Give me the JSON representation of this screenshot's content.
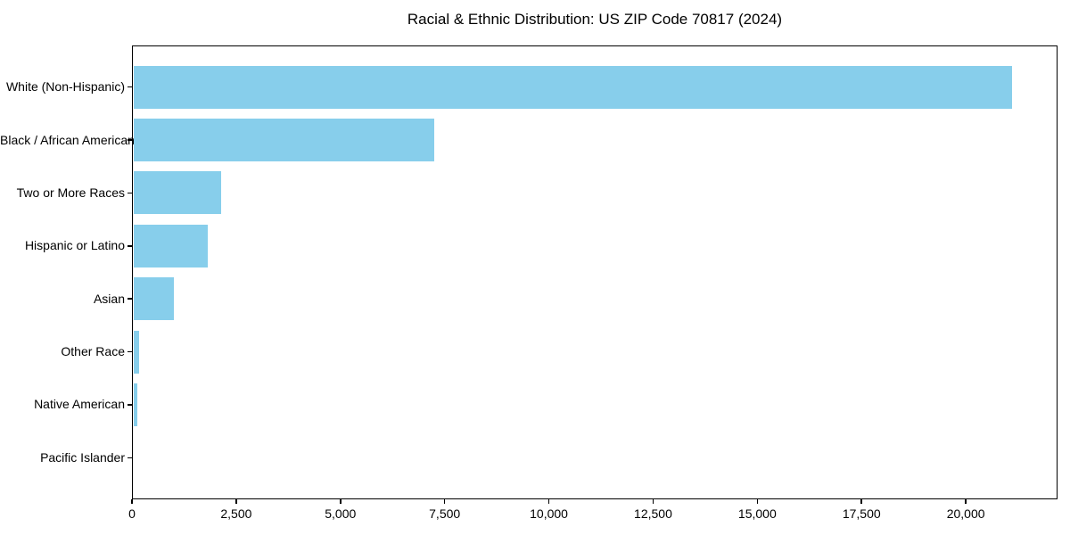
{
  "chart_data": {
    "type": "bar",
    "orientation": "horizontal",
    "title": "Racial & Ethnic Distribution: US ZIP Code 70817 (2024)",
    "categories": [
      "White (Non-Hispanic)",
      "Black / African American",
      "Two or More Races",
      "Hispanic or Latino",
      "Asian",
      "Other Race",
      "Native American",
      "Pacific Islander"
    ],
    "values": [
      21100,
      7250,
      2140,
      1820,
      1000,
      175,
      125,
      0
    ],
    "xlabel": "",
    "ylabel": "",
    "xlim": [
      0,
      22200
    ],
    "x_ticks": [
      0,
      2500,
      5000,
      7500,
      10000,
      12500,
      15000,
      17500,
      20000
    ],
    "x_tick_labels": [
      "0",
      "2,500",
      "5,000",
      "7,500",
      "10,000",
      "12,500",
      "15,000",
      "17,500",
      "20,000"
    ],
    "bar_color": "#87CEEB",
    "background_color": "#ffffff",
    "spine_color": "#000000",
    "grid": false
  }
}
